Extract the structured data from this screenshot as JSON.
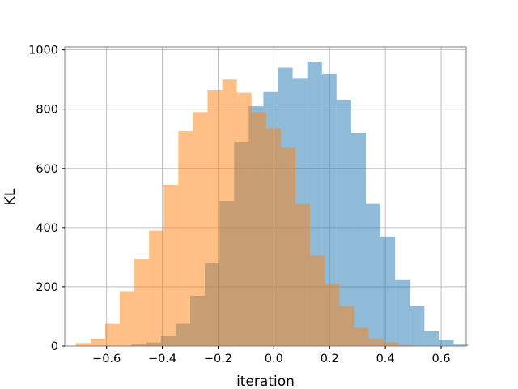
{
  "chart_data": {
    "type": "bar",
    "title": "",
    "xlabel": "iteration",
    "ylabel": "KL",
    "xlim": [
      -0.75,
      0.69
    ],
    "ylim": [
      0,
      1010
    ],
    "grid": true,
    "bin_width": 0.0525,
    "x_ticks": [
      -0.6,
      -0.4,
      -0.2,
      0.0,
      0.2,
      0.4,
      0.6
    ],
    "x_tick_labels": [
      "−0.6",
      "−0.4",
      "−0.2",
      "0.0",
      "0.2",
      "0.4",
      "0.6"
    ],
    "y_ticks": [
      0,
      200,
      400,
      600,
      800,
      1000
    ],
    "y_tick_labels": [
      "0",
      "200",
      "400",
      "600",
      "800",
      "1000"
    ],
    "series": [
      {
        "color": "#1f77b4",
        "opacity": 0.5,
        "bin_start": -0.51,
        "values": [
          5,
          12,
          35,
          75,
          170,
          280,
          490,
          690,
          810,
          860,
          940,
          905,
          960,
          920,
          830,
          720,
          480,
          370,
          225,
          135,
          50,
          22,
          5
        ]
      },
      {
        "color": "#ff7f0e",
        "opacity": 0.5,
        "bin_start": -0.71,
        "values": [
          10,
          25,
          75,
          185,
          295,
          390,
          545,
          725,
          790,
          865,
          900,
          855,
          790,
          735,
          670,
          480,
          305,
          210,
          135,
          62,
          25,
          12,
          3
        ]
      }
    ]
  }
}
